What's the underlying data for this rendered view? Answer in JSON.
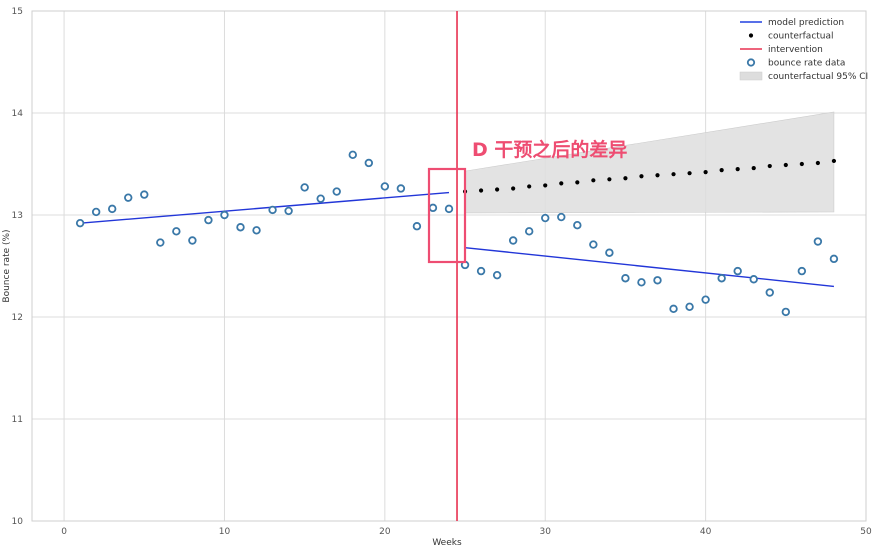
{
  "chart_data": {
    "type": "scatter",
    "xlabel": "Weeks",
    "ylabel": "Bounce rate (%)",
    "xlim": [
      -2,
      50
    ],
    "ylim": [
      10,
      15
    ],
    "xticks": [
      0,
      10,
      20,
      30,
      40,
      50
    ],
    "yticks": [
      10,
      11,
      12,
      13,
      14,
      15
    ],
    "grid": true,
    "legend_position": "top-right",
    "intervention_week": 24.5,
    "annotation": "D 干预之后的差异",
    "legend": [
      {
        "label": "model prediction",
        "marker": "line",
        "color": "#2040e0"
      },
      {
        "label": "counterfactual",
        "marker": "dot",
        "color": "#000000"
      },
      {
        "label": "intervention",
        "marker": "line",
        "color": "#e83050"
      },
      {
        "label": "bounce rate data",
        "marker": "circle",
        "color": "#3a78a8"
      },
      {
        "label": "counterfactual 95% CI",
        "marker": "patch",
        "color": "#dddddd"
      }
    ],
    "series": [
      {
        "name": "bounce rate data",
        "x": [
          1,
          2,
          3,
          4,
          5,
          6,
          7,
          8,
          9,
          10,
          11,
          12,
          13,
          14,
          15,
          16,
          17,
          18,
          19,
          20,
          21,
          22,
          23,
          24,
          25,
          26,
          27,
          28,
          29,
          30,
          31,
          32,
          33,
          34,
          35,
          36,
          37,
          38,
          39,
          40,
          41,
          42,
          43,
          44,
          45,
          46,
          47,
          48
        ],
        "y": [
          12.92,
          13.03,
          13.06,
          13.17,
          13.2,
          12.73,
          12.84,
          12.75,
          12.95,
          13.0,
          12.88,
          12.85,
          13.05,
          13.04,
          13.27,
          13.16,
          13.23,
          13.59,
          13.51,
          13.28,
          13.26,
          12.89,
          13.07,
          13.06,
          12.51,
          12.45,
          12.41,
          12.75,
          12.84,
          12.97,
          12.98,
          12.9,
          12.71,
          12.63,
          12.38,
          12.34,
          12.36,
          12.08,
          12.1,
          12.17,
          12.38,
          12.45,
          12.37,
          12.24,
          12.05,
          12.45,
          12.74,
          12.57
        ]
      },
      {
        "name": "model prediction (pre)",
        "x": [
          1,
          24
        ],
        "y": [
          12.92,
          13.22
        ]
      },
      {
        "name": "model prediction (post)",
        "x": [
          25,
          48
        ],
        "y": [
          12.68,
          12.3
        ]
      },
      {
        "name": "counterfactual",
        "x": [
          25,
          26,
          27,
          28,
          29,
          30,
          31,
          32,
          33,
          34,
          35,
          36,
          37,
          38,
          39,
          40,
          41,
          42,
          43,
          44,
          45,
          46,
          47,
          48
        ],
        "y": [
          13.23,
          13.24,
          13.25,
          13.26,
          13.28,
          13.29,
          13.31,
          13.32,
          13.34,
          13.35,
          13.36,
          13.38,
          13.39,
          13.4,
          13.41,
          13.42,
          13.44,
          13.45,
          13.46,
          13.48,
          13.49,
          13.5,
          13.51,
          13.53
        ]
      },
      {
        "name": "counterfactual 95% CI",
        "x": [
          25,
          48
        ],
        "upper": [
          13.43,
          14.01
        ],
        "lower": [
          13.02,
          13.03
        ]
      }
    ]
  }
}
